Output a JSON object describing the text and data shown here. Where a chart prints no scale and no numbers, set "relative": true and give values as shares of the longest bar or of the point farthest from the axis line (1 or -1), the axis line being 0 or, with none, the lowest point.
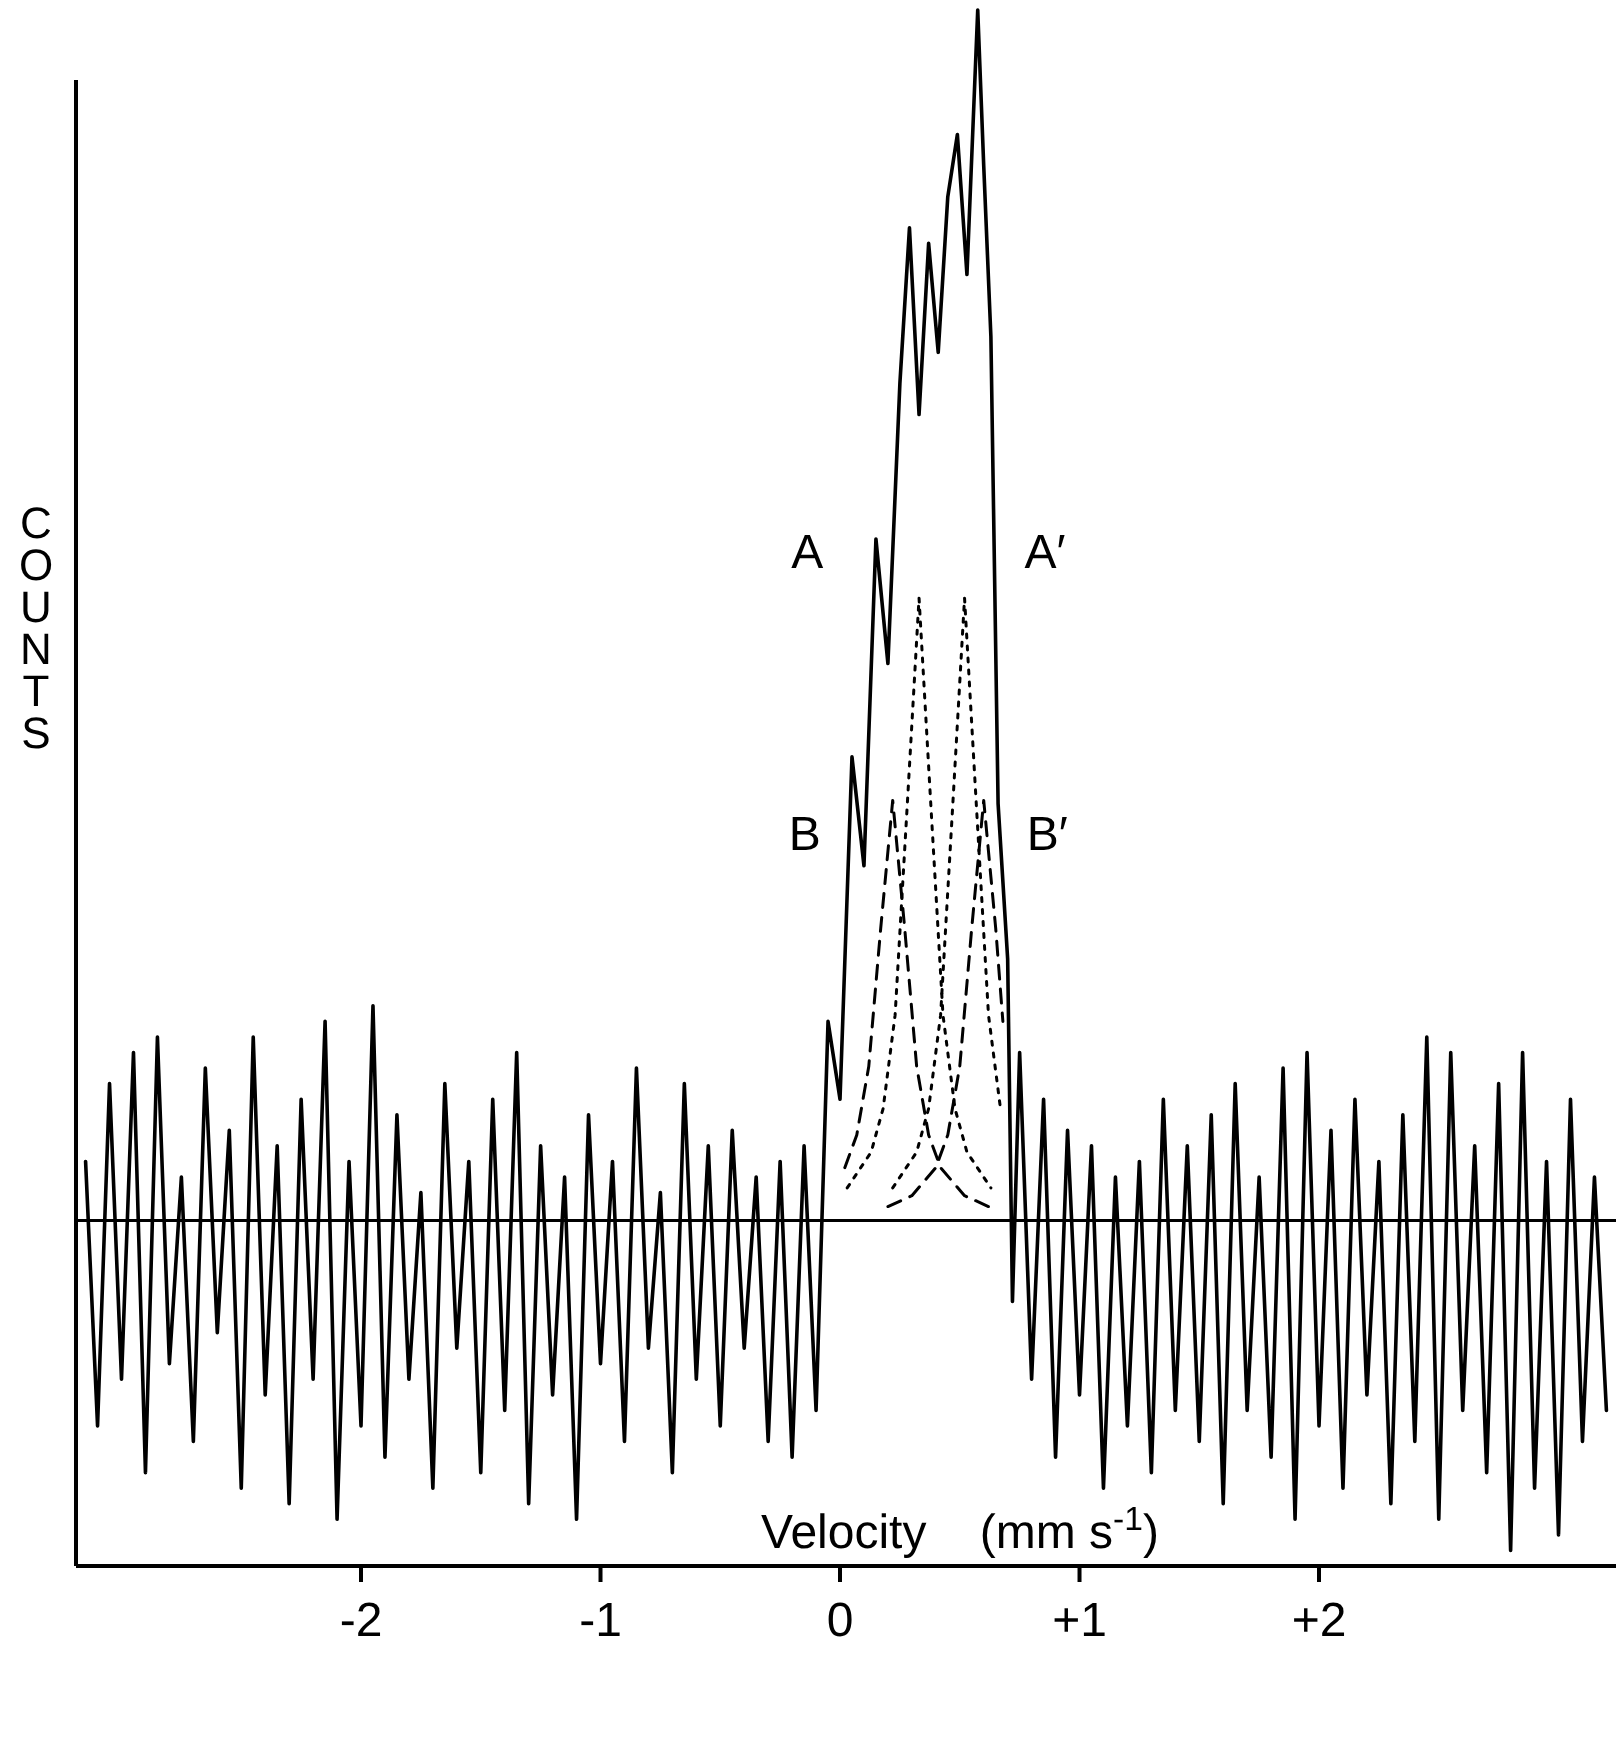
{
  "chart_data": {
    "type": "line",
    "relative": true,
    "xlabel": "Velocity    (mm s$^{-1}$)",
    "ylabel": "COUNTS",
    "xlim": [
      -3.19,
      3.24
    ],
    "xticks": [
      -2,
      -1,
      0,
      {
        "value": 1,
        "label": "+1"
      },
      {
        "value": 2,
        "label": "+2"
      }
    ],
    "series": [
      {
        "color": "#000000",
        "line_style": "solid",
        "x": [
          -3.15,
          -3.1,
          -3.05,
          -3.0,
          -2.95,
          -2.9,
          -2.85,
          -2.8,
          -2.75,
          -2.7,
          -2.65,
          -2.6,
          -2.55,
          -2.5,
          -2.45,
          -2.4,
          -2.35,
          -2.3,
          -2.25,
          -2.2,
          -2.15,
          -2.1,
          -2.05,
          -2.0,
          -1.95,
          -1.9,
          -1.85,
          -1.8,
          -1.75,
          -1.7,
          -1.65,
          -1.6,
          -1.55,
          -1.5,
          -1.45,
          -1.4,
          -1.35,
          -1.3,
          -1.25,
          -1.2,
          -1.15,
          -1.1,
          -1.05,
          -1.0,
          -0.95,
          -0.9,
          -0.85,
          -0.8,
          -0.75,
          -0.7,
          -0.65,
          -0.6,
          -0.55,
          -0.5,
          -0.45,
          -0.4,
          -0.35,
          -0.3,
          -0.25,
          -0.2,
          -0.15,
          -0.1,
          -0.05,
          0.0,
          0.05,
          0.1,
          0.15,
          0.2,
          0.25,
          0.29,
          0.33,
          0.37,
          0.41,
          0.45,
          0.49,
          0.53,
          0.575,
          0.6,
          0.63,
          0.66,
          0.7,
          0.72,
          0.75,
          0.8,
          0.85,
          0.9,
          0.95,
          1.0,
          1.05,
          1.1,
          1.15,
          1.2,
          1.25,
          1.3,
          1.35,
          1.4,
          1.45,
          1.5,
          1.55,
          1.6,
          1.65,
          1.7,
          1.75,
          1.8,
          1.85,
          1.9,
          1.95,
          2.0,
          2.05,
          2.1,
          2.15,
          2.2,
          2.25,
          2.3,
          2.35,
          2.4,
          2.45,
          2.5,
          2.55,
          2.6,
          2.65,
          2.7,
          2.75,
          2.8,
          2.85,
          2.9,
          2.95,
          3.0,
          3.05,
          3.1,
          3.15,
          3.2
        ],
        "values": [
          0.26,
          0.09,
          0.31,
          0.12,
          0.33,
          0.06,
          0.34,
          0.13,
          0.25,
          0.08,
          0.32,
          0.15,
          0.28,
          0.05,
          0.34,
          0.11,
          0.27,
          0.04,
          0.3,
          0.12,
          0.35,
          0.03,
          0.26,
          0.09,
          0.36,
          0.07,
          0.29,
          0.12,
          0.24,
          0.05,
          0.31,
          0.14,
          0.26,
          0.06,
          0.3,
          0.1,
          0.33,
          0.04,
          0.27,
          0.11,
          0.25,
          0.03,
          0.29,
          0.13,
          0.26,
          0.08,
          0.32,
          0.14,
          0.24,
          0.06,
          0.31,
          0.12,
          0.27,
          0.09,
          0.28,
          0.14,
          0.25,
          0.08,
          0.26,
          0.07,
          0.27,
          0.1,
          0.35,
          0.3,
          0.52,
          0.45,
          0.66,
          0.58,
          0.76,
          0.86,
          0.74,
          0.85,
          0.78,
          0.88,
          0.92,
          0.83,
          1.0,
          0.9,
          0.79,
          0.49,
          0.39,
          0.17,
          0.33,
          0.12,
          0.3,
          0.07,
          0.28,
          0.11,
          0.27,
          0.05,
          0.25,
          0.09,
          0.26,
          0.06,
          0.3,
          0.1,
          0.27,
          0.08,
          0.29,
          0.04,
          0.31,
          0.1,
          0.25,
          0.07,
          0.32,
          0.03,
          0.33,
          0.09,
          0.28,
          0.05,
          0.3,
          0.11,
          0.26,
          0.04,
          0.29,
          0.08,
          0.34,
          0.03,
          0.33,
          0.1,
          0.27,
          0.06,
          0.31,
          0.01,
          0.33,
          0.05,
          0.26,
          0.02,
          0.3,
          0.08,
          0.25,
          0.1
        ]
      },
      {
        "color": "#000000",
        "line_style": "solid",
        "x": [
          -3.19,
          3.24
        ],
        "values": [
          0.222,
          0.222
        ]
      },
      {
        "name": "A",
        "color": "#000000",
        "line_style": "dotted",
        "x": [
          0.03,
          0.13,
          0.18,
          0.23,
          0.28,
          0.33,
          0.38,
          0.43,
          0.48,
          0.53,
          0.63
        ],
        "values": [
          0.243,
          0.266,
          0.294,
          0.354,
          0.487,
          0.622,
          0.487,
          0.354,
          0.294,
          0.266,
          0.243
        ]
      },
      {
        "name": "A′",
        "color": "#000000",
        "line_style": "dotted",
        "x": [
          0.22,
          0.32,
          0.37,
          0.42,
          0.47,
          0.52,
          0.57,
          0.62,
          0.67
        ],
        "values": [
          0.243,
          0.266,
          0.294,
          0.354,
          0.487,
          0.622,
          0.487,
          0.354,
          0.294
        ]
      },
      {
        "name": "B",
        "color": "#000000",
        "line_style": "dashed",
        "x": [
          0.02,
          0.07,
          0.12,
          0.17,
          0.22,
          0.27,
          0.32,
          0.37,
          0.42,
          0.52,
          0.62
        ],
        "values": [
          0.256,
          0.277,
          0.321,
          0.41,
          0.492,
          0.41,
          0.321,
          0.277,
          0.256,
          0.238,
          0.231
        ]
      },
      {
        "name": "B′",
        "color": "#000000",
        "line_style": "dashed",
        "x": [
          0.2,
          0.3,
          0.4,
          0.45,
          0.5,
          0.55,
          0.6,
          0.65,
          0.68
        ],
        "values": [
          0.231,
          0.238,
          0.256,
          0.277,
          0.321,
          0.41,
          0.492,
          0.41,
          0.35
        ]
      }
    ]
  }
}
